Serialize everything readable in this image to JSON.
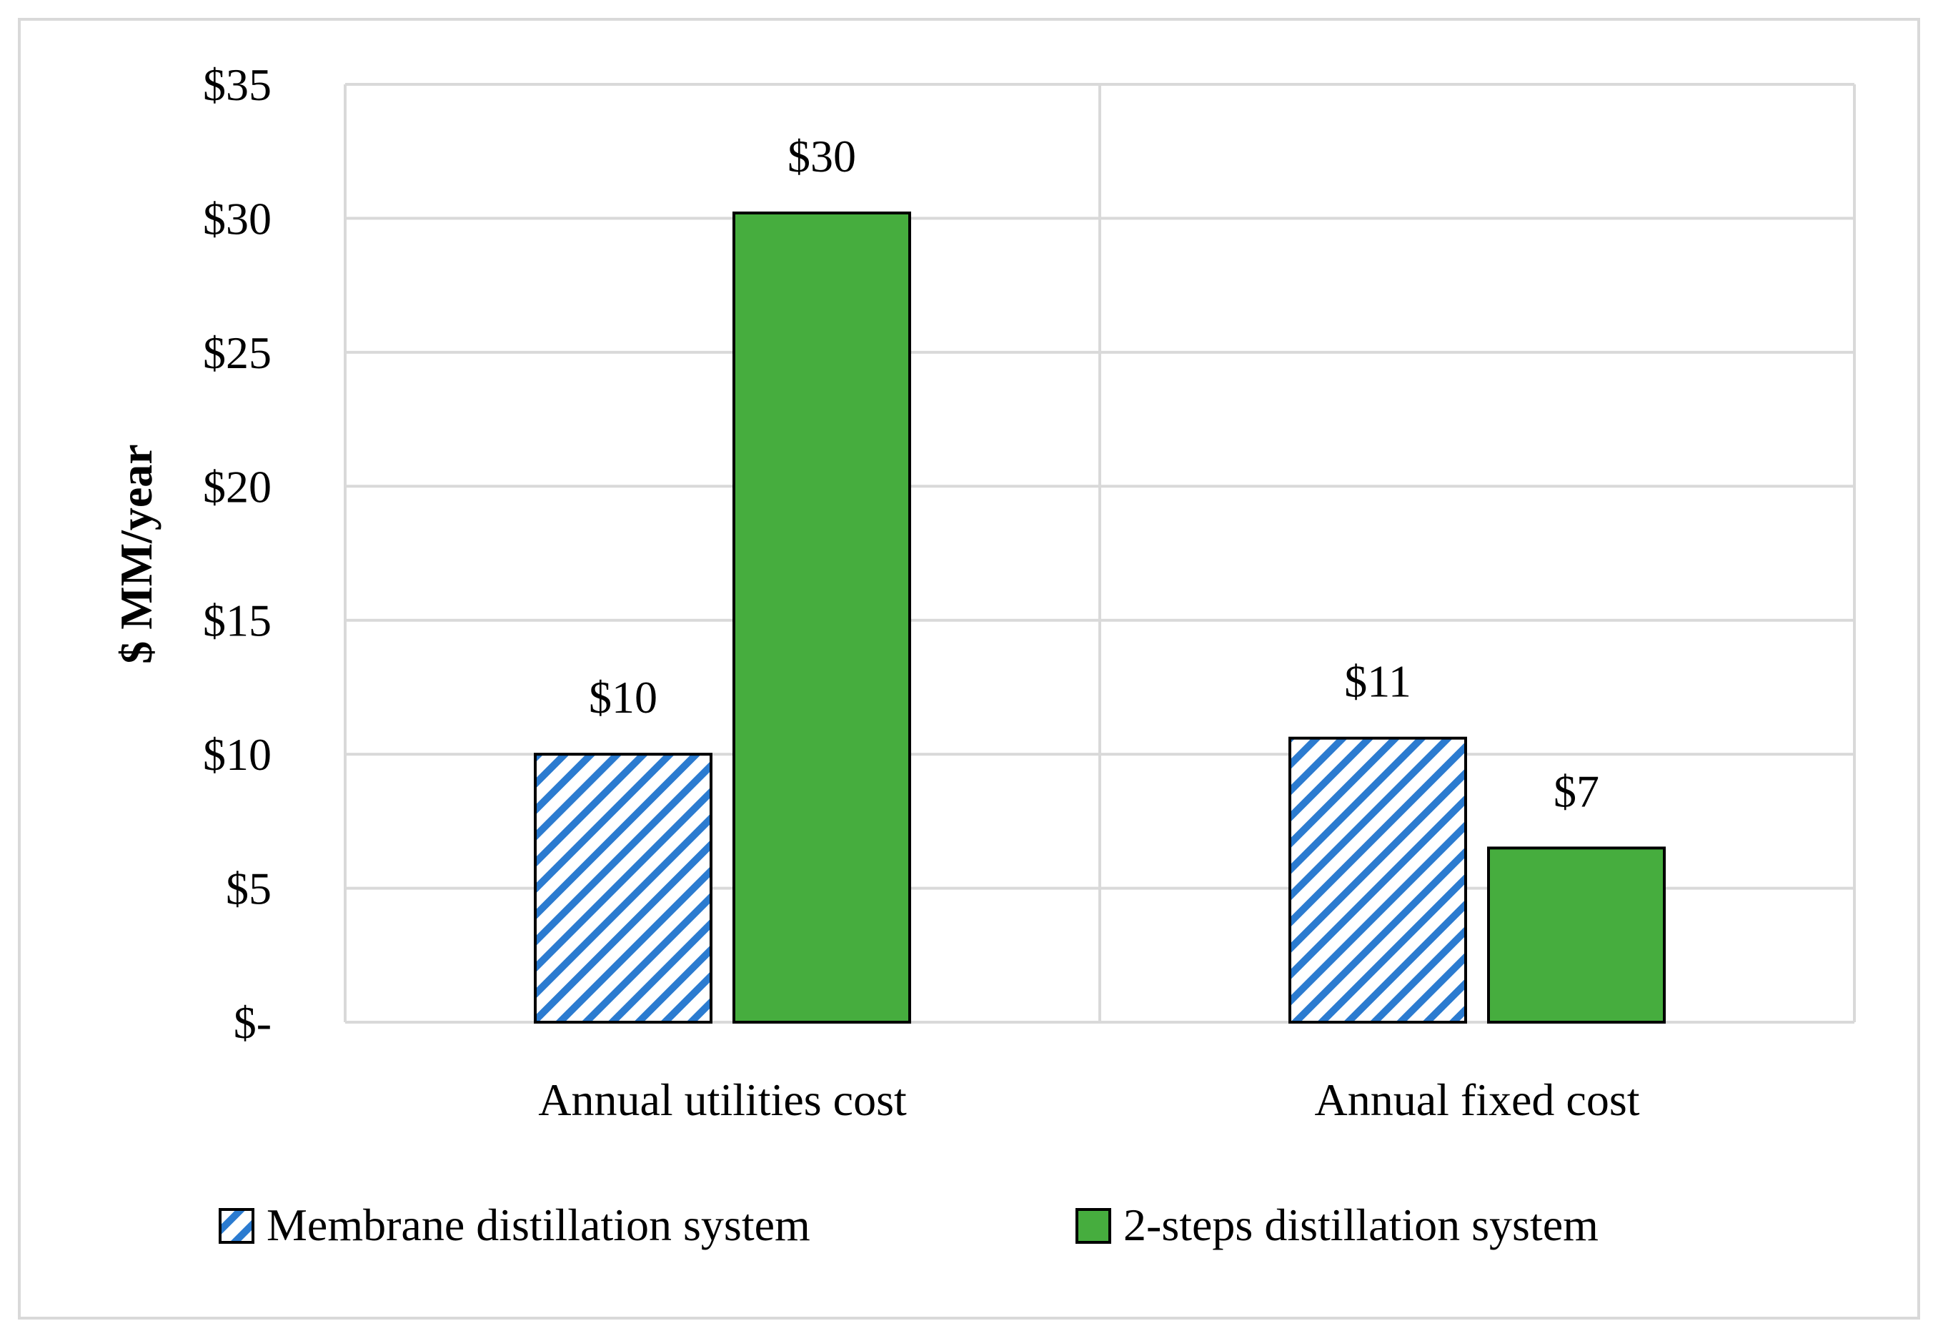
{
  "chart_data": {
    "type": "bar",
    "title": "",
    "xlabel": "",
    "ylabel": "$ MM/year",
    "ylim": [
      0,
      35
    ],
    "yticks": [
      {
        "value": 0,
        "label": "$-"
      },
      {
        "value": 5,
        "label": "$5"
      },
      {
        "value": 10,
        "label": "$10"
      },
      {
        "value": 15,
        "label": "$15"
      },
      {
        "value": 20,
        "label": "$20"
      },
      {
        "value": 25,
        "label": "$25"
      },
      {
        "value": 30,
        "label": "$30"
      },
      {
        "value": 35,
        "label": "$35"
      }
    ],
    "grid": true,
    "categories": [
      "Annual utilities cost",
      "Annual fixed cost"
    ],
    "series": [
      {
        "name": "Membrane distillation system",
        "pattern": "diagonal-stripes",
        "color": "#2b7bd0",
        "values": [
          10.0,
          10.6
        ],
        "data_labels": [
          "$10",
          "$11"
        ]
      },
      {
        "name": "2-steps distillation system",
        "pattern": "solid",
        "color": "#46ad3e",
        "values": [
          30.2,
          6.5
        ],
        "data_labels": [
          "$30",
          "$7"
        ]
      }
    ],
    "legend_position": "bottom"
  }
}
